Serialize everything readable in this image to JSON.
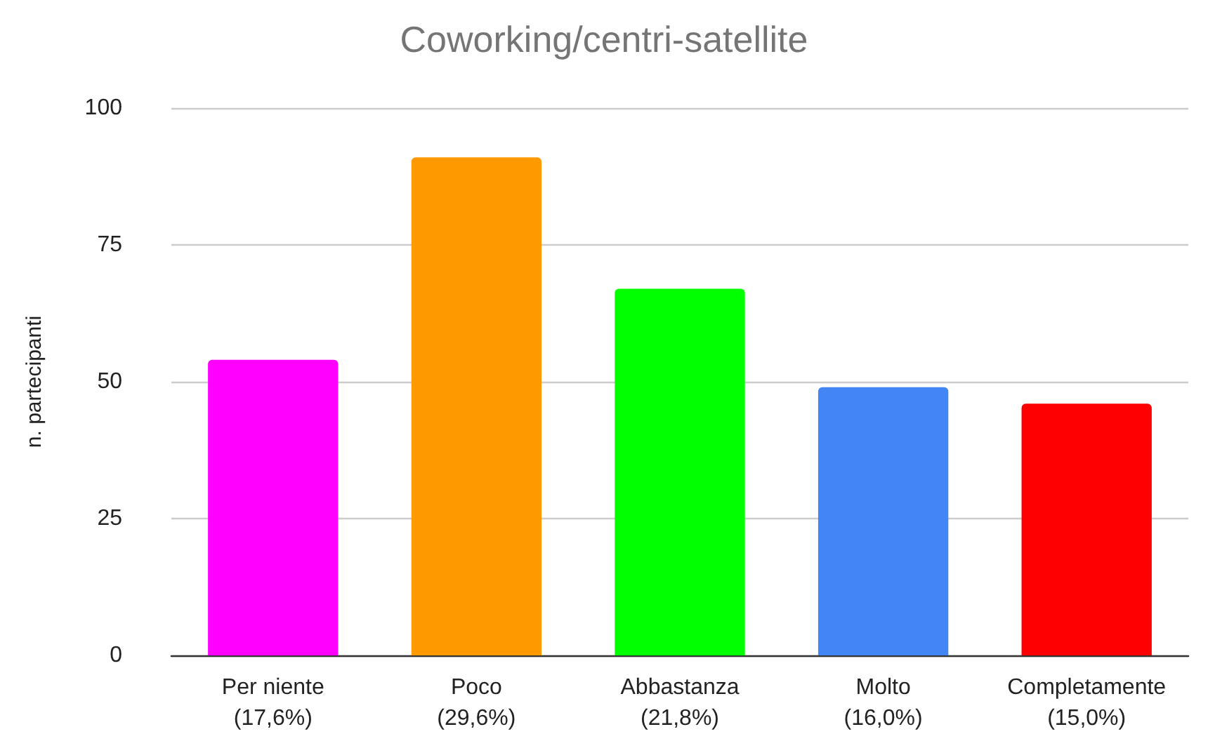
{
  "chart_data": {
    "type": "bar",
    "title": "Coworking/centri-satellite",
    "ylabel": "n. partecipanti",
    "categories": [
      "Per niente\n(17,6%)",
      "Poco\n(29,6%)",
      "Abbastanza\n(21,8%)",
      "Molto\n(16,0%)",
      "Completamente\n(15,0%)"
    ],
    "values": [
      54,
      91,
      67,
      49,
      46
    ],
    "colors": [
      "#ff00ff",
      "#ff9900",
      "#00ff00",
      "#4285f4",
      "#ff0000"
    ],
    "ylim": [
      0,
      100
    ],
    "yticks": [
      0,
      25,
      50,
      75,
      100
    ],
    "grid": "y"
  }
}
